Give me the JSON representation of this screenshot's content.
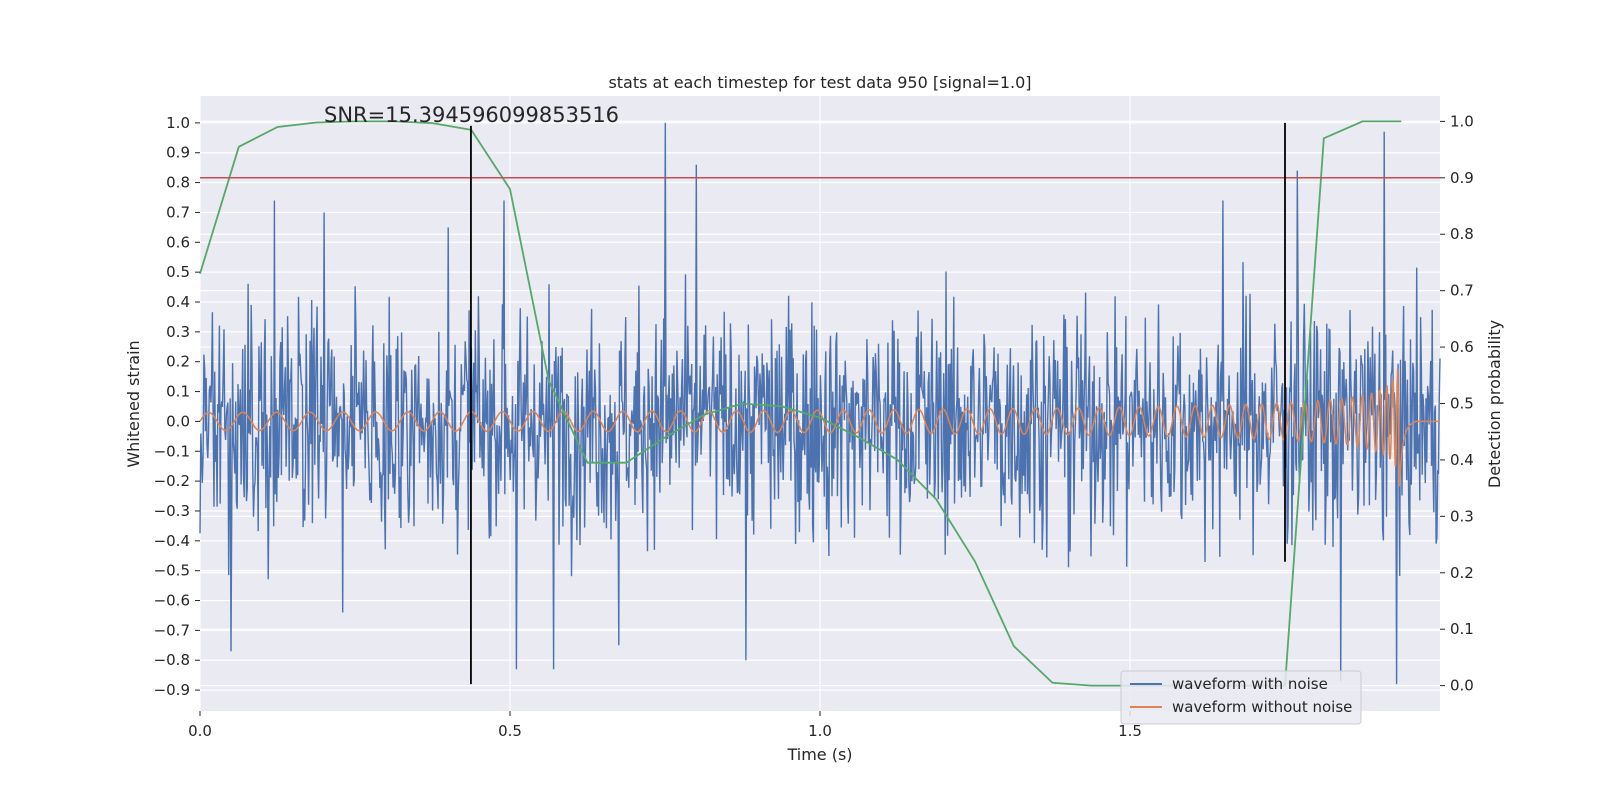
{
  "chart_data": {
    "type": "line",
    "title": "stats at each timestep for test data 950 [signal=1.0]",
    "xlabel": "Time (s)",
    "ylabel": "Whitened strain",
    "y2label": "Detection probability",
    "xlim": [
      0.0,
      2.0
    ],
    "ylim": [
      -0.97,
      1.09
    ],
    "y2lim": [
      -0.045,
      1.045
    ],
    "x_ticks": [
      0.0,
      0.5,
      1.0,
      1.5
    ],
    "x_tick_labels": [
      "0.0",
      "0.5",
      "1.0",
      "1.5"
    ],
    "y_ticks": [
      1.0,
      0.9,
      0.8,
      0.7,
      0.6,
      0.5,
      0.4,
      0.3,
      0.2,
      0.1,
      0.0,
      -0.1,
      -0.2,
      -0.3,
      -0.4,
      -0.5,
      -0.6,
      -0.7,
      -0.8,
      -0.9
    ],
    "y_tick_labels": [
      "1.0",
      "0.9",
      "0.8",
      "0.7",
      "0.6",
      "0.5",
      "0.4",
      "0.3",
      "0.2",
      "0.1",
      "0.0",
      "−0.1",
      "−0.2",
      "−0.3",
      "−0.4",
      "−0.5",
      "−0.6",
      "−0.7",
      "−0.8",
      "−0.9"
    ],
    "y2_ticks": [
      1.0,
      0.9,
      0.8,
      0.7,
      0.6,
      0.5,
      0.4,
      0.3,
      0.2,
      0.1,
      0.0
    ],
    "y2_tick_labels": [
      "1.0",
      "0.9",
      "0.8",
      "0.7",
      "0.6",
      "0.5",
      "0.4",
      "0.3",
      "0.2",
      "0.1",
      "0.0"
    ],
    "annotation": "SNR=15.394596099853516",
    "annotation_pos": {
      "x": 0.2,
      "y": 1.0
    },
    "legend": {
      "location": "lower right",
      "entries": [
        {
          "label": "waveform with noise",
          "color": "#4c72b0"
        },
        {
          "label": "waveform without noise",
          "color": "#dd8452"
        }
      ]
    },
    "threshold": {
      "value": 0.9,
      "axis": "y2",
      "color": "#c44e52"
    },
    "vlines": [
      {
        "x": 0.437,
        "ymin": -0.88,
        "ymax": 0.99,
        "color": "#000000"
      },
      {
        "x": 1.75,
        "ymin": -0.47,
        "ymax": 1.0,
        "color": "#000000"
      }
    ],
    "series_noisy": {
      "name": "waveform with noise",
      "color": "#4c72b0",
      "x_start": 0.0,
      "x_end": 2.0,
      "n_points": 1600,
      "std": 0.19,
      "clip": [
        -0.88,
        1.0
      ],
      "spikes": [
        {
          "t": 0.05,
          "v": -0.77
        },
        {
          "t": 0.12,
          "v": 0.74
        },
        {
          "t": 0.2,
          "v": 0.7
        },
        {
          "t": 0.23,
          "v": -0.64
        },
        {
          "t": 0.4,
          "v": 0.65
        },
        {
          "t": 0.49,
          "v": 0.74
        },
        {
          "t": 0.51,
          "v": -0.83
        },
        {
          "t": 0.57,
          "v": -0.83
        },
        {
          "t": 0.675,
          "v": -0.75
        },
        {
          "t": 0.75,
          "v": 1.0
        },
        {
          "t": 0.8,
          "v": 0.86
        },
        {
          "t": 0.88,
          "v": -0.8
        },
        {
          "t": 1.65,
          "v": 0.74
        },
        {
          "t": 1.77,
          "v": 0.84
        },
        {
          "t": 1.84,
          "v": -0.87
        },
        {
          "t": 1.91,
          "v": 0.97
        },
        {
          "t": 1.93,
          "v": -0.88
        }
      ]
    },
    "series_clean": {
      "name": "waveform without noise",
      "color": "#dd8452",
      "t_merge": 1.935,
      "t_end": 1.96,
      "f_start": 18.0,
      "amp_start": 0.03,
      "amp_end": 0.66,
      "flat_after": 1.96,
      "flat_value": 0.0
    },
    "series_prob": {
      "name": "detection probability",
      "color": "#55a868",
      "x": [
        0.0,
        0.0625,
        0.125,
        0.1875,
        0.25,
        0.3125,
        0.375,
        0.4375,
        0.5,
        0.5625,
        0.625,
        0.6875,
        0.75,
        0.8125,
        0.875,
        0.9375,
        1.0,
        1.0625,
        1.125,
        1.1875,
        1.25,
        1.3125,
        1.375,
        1.4375,
        1.5,
        1.5625,
        1.625,
        1.6875,
        1.75,
        1.8125,
        1.875,
        1.9375
      ],
      "y": [
        0.73,
        0.955,
        0.99,
        0.998,
        1.0,
        1.0,
        0.997,
        0.985,
        0.88,
        0.54,
        0.395,
        0.395,
        0.44,
        0.48,
        0.5,
        0.495,
        0.475,
        0.44,
        0.4,
        0.33,
        0.22,
        0.07,
        0.005,
        0.0,
        0.0,
        0.0,
        0.0,
        0.0,
        0.0,
        0.97,
        1.0,
        1.0
      ]
    }
  }
}
